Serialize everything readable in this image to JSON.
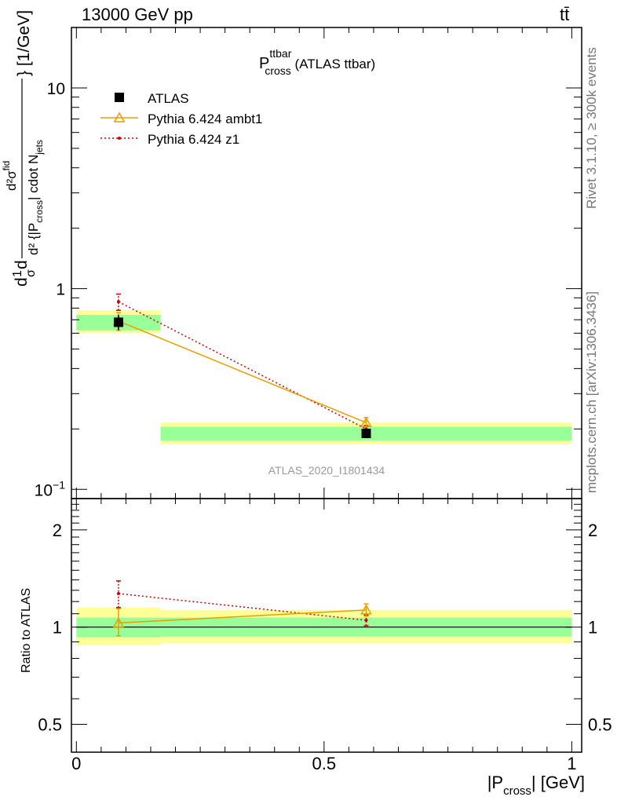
{
  "header": {
    "energy": "13000 GeV pp",
    "process": "tt̄"
  },
  "side_labels": {
    "rivet": "Rivet 3.1.10, ≥ 300k events",
    "site": "mcplots.cern.ch [arXiv:1306.3436]"
  },
  "watermark": "ATLAS_2020_I1801434",
  "chart_data": [
    {
      "type": "scatter",
      "panel": "main",
      "title": {
        "main": "P",
        "sup": "ttbar",
        "sub": "cross",
        "suffix": " (ATLAS ttbar)"
      },
      "ylabel": "d²σ^fid / (σ d²{|P_cross| cdot N_jets}) [1/GeV]",
      "ylabel_parts": {
        "p1": "d",
        "p2": "1",
        "p3": "σ",
        "p4": "d",
        "num": "d²σ",
        "num_sup": "fid",
        "den": "d² {|P",
        "den_sub": "cross",
        "den2": "| cdot N",
        "den_sub2": "jets",
        "unit": "} [1/GeV]"
      },
      "yscale": "log",
      "ylim": [
        0.09,
        20
      ],
      "xlim": [
        -0.01,
        1.02
      ],
      "yticks": [
        {
          "value": 0.1,
          "label": "10",
          "sup": "−1"
        },
        {
          "value": 1,
          "label": "1"
        },
        {
          "value": 10,
          "label": "10"
        }
      ],
      "legend_position": "top-left",
      "series": [
        {
          "name": "ATLAS",
          "color": "#000000",
          "marker": "square",
          "x": [
            0.085,
            0.585
          ],
          "y": [
            0.68,
            0.19
          ],
          "yerr_low": [
            0.06,
            0.01
          ],
          "yerr_high": [
            0.06,
            0.01
          ],
          "bands": [
            {
              "x": [
                0.0,
                0.17
              ],
              "inner": [
                0.62,
                0.74
              ],
              "outer": [
                0.6,
                0.78
              ]
            },
            {
              "x": [
                0.17,
                1.0
              ],
              "inner": [
                0.175,
                0.205
              ],
              "outer": [
                0.168,
                0.215
              ]
            }
          ]
        },
        {
          "name": "Pythia 6.424 ambt1",
          "color": "#e69f00",
          "marker": "triangle",
          "line": "solid",
          "x": [
            0.085,
            0.585
          ],
          "y": [
            0.69,
            0.215
          ],
          "yerr_low": [
            0.07,
            0.01
          ],
          "yerr_high": [
            0.07,
            0.013
          ]
        },
        {
          "name": "Pythia 6.424 z1",
          "color": "#d00000",
          "marker": "dot",
          "line": "dotted",
          "x": [
            0.085,
            0.585
          ],
          "y": [
            0.86,
            0.2
          ],
          "yerr_low": [
            0.08,
            0.008
          ],
          "yerr_high": [
            0.08,
            0.008
          ]
        }
      ]
    },
    {
      "type": "scatter",
      "panel": "ratio",
      "ylabel": "Ratio to ATLAS",
      "xlabel": "|P_cross| [GeV]",
      "xlabel_parts": {
        "pre": "|P",
        "sub": "cross",
        "post": "| [GeV]"
      },
      "yscale": "log",
      "ylim": [
        0.41,
        2.5
      ],
      "xlim": [
        -0.01,
        1.02
      ],
      "xticks": [
        {
          "value": 0,
          "label": "0"
        },
        {
          "value": 0.5,
          "label": "0.5"
        },
        {
          "value": 1,
          "label": "1"
        }
      ],
      "yticks": [
        {
          "value": 0.5,
          "label": "0.5"
        },
        {
          "value": 1,
          "label": "1"
        },
        {
          "value": 2,
          "label": "2"
        }
      ],
      "bands": [
        {
          "x": [
            0.0,
            0.17
          ],
          "inner": [
            0.93,
            1.07
          ],
          "outer": [
            0.88,
            1.15
          ]
        },
        {
          "x": [
            0.17,
            1.0
          ],
          "inner": [
            0.935,
            1.07
          ],
          "outer": [
            0.89,
            1.13
          ]
        }
      ],
      "series": [
        {
          "name": "Pythia 6.424 ambt1",
          "color": "#e69f00",
          "marker": "triangle",
          "line": "solid",
          "x": [
            0.085,
            0.585
          ],
          "y": [
            1.03,
            1.13
          ],
          "yerr_low": [
            0.09,
            0.05
          ],
          "yerr_high": [
            0.11,
            0.05
          ]
        },
        {
          "name": "Pythia 6.424 z1",
          "color": "#d00000",
          "marker": "dot",
          "line": "dotted",
          "x": [
            0.085,
            0.585
          ],
          "y": [
            1.27,
            1.05
          ],
          "yerr_low": [
            0.12,
            0.04
          ],
          "yerr_high": [
            0.12,
            0.04
          ]
        }
      ]
    }
  ]
}
